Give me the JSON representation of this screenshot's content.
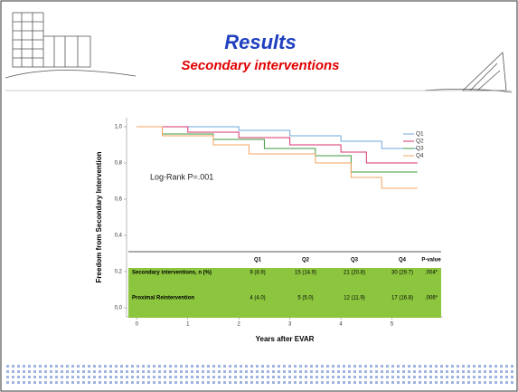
{
  "slide": {
    "title": "Results",
    "subtitle": "Secondary interventions"
  },
  "chart_data": {
    "type": "line",
    "y_label": "Freedom from Secondary Intervention",
    "x_label": "Years after EVAR",
    "annotation": "Log-Rank P=.001",
    "xlim": [
      -0.2,
      6
    ],
    "ylim": [
      -0.05,
      1.05
    ],
    "xticks": [
      0,
      1,
      2,
      3,
      4,
      5
    ],
    "yticks": [
      {
        "value": 0,
        "label": "0,0"
      },
      {
        "value": 0.2,
        "label": "0,2"
      },
      {
        "value": 0.4,
        "label": "0,4"
      },
      {
        "value": 0.6,
        "label": "0,6"
      },
      {
        "value": 0.8,
        "label": "0,8"
      },
      {
        "value": 1,
        "label": "1,0"
      }
    ],
    "series": [
      {
        "name": "Q1",
        "color": "#6fa8dc",
        "x": [
          0,
          2,
          2,
          3,
          3,
          4,
          4,
          4.8,
          4.8,
          5.5
        ],
        "values": [
          1,
          1,
          0.98,
          0.98,
          0.95,
          0.95,
          0.92,
          0.92,
          0.88,
          0.88
        ]
      },
      {
        "name": "Q2",
        "color": "#d6336c",
        "x": [
          0,
          1,
          1,
          2,
          2,
          3,
          3,
          4,
          4,
          4.5,
          4.5,
          5.5
        ],
        "values": [
          1,
          1,
          0.97,
          0.97,
          0.94,
          0.94,
          0.9,
          0.9,
          0.86,
          0.86,
          0.8,
          0.8
        ]
      },
      {
        "name": "Q3",
        "color": "#3c9a3c",
        "x": [
          0,
          0.5,
          0.5,
          1.5,
          1.5,
          2.5,
          2.5,
          3.5,
          3.5,
          4.2,
          4.2,
          5.5
        ],
        "values": [
          1,
          1,
          0.96,
          0.96,
          0.93,
          0.93,
          0.88,
          0.88,
          0.84,
          0.84,
          0.75,
          0.75
        ]
      },
      {
        "name": "Q4",
        "color": "#f4a460",
        "x": [
          0,
          0.5,
          0.5,
          1.5,
          1.5,
          2.2,
          2.2,
          3.5,
          3.5,
          4.2,
          4.2,
          4.8,
          4.8,
          5.5
        ],
        "values": [
          1,
          1,
          0.95,
          0.95,
          0.9,
          0.9,
          0.85,
          0.85,
          0.8,
          0.8,
          0.72,
          0.72,
          0.66,
          0.66
        ]
      }
    ]
  },
  "table": {
    "header": [
      "Q1",
      "Q2",
      "Q3",
      "Q4",
      "P-value"
    ],
    "rows": [
      [
        "Secondary interventions, n (%)",
        "9 (8.9)",
        "15 (14.9)",
        "21 (20.8)",
        "30 (29.7)",
        ".004*"
      ],
      [
        "Proximal Reintervention",
        "4 (4.0)",
        "5 (5.0)",
        "12 (11.9)",
        "17 (16.8)",
        ".006*"
      ]
    ]
  }
}
